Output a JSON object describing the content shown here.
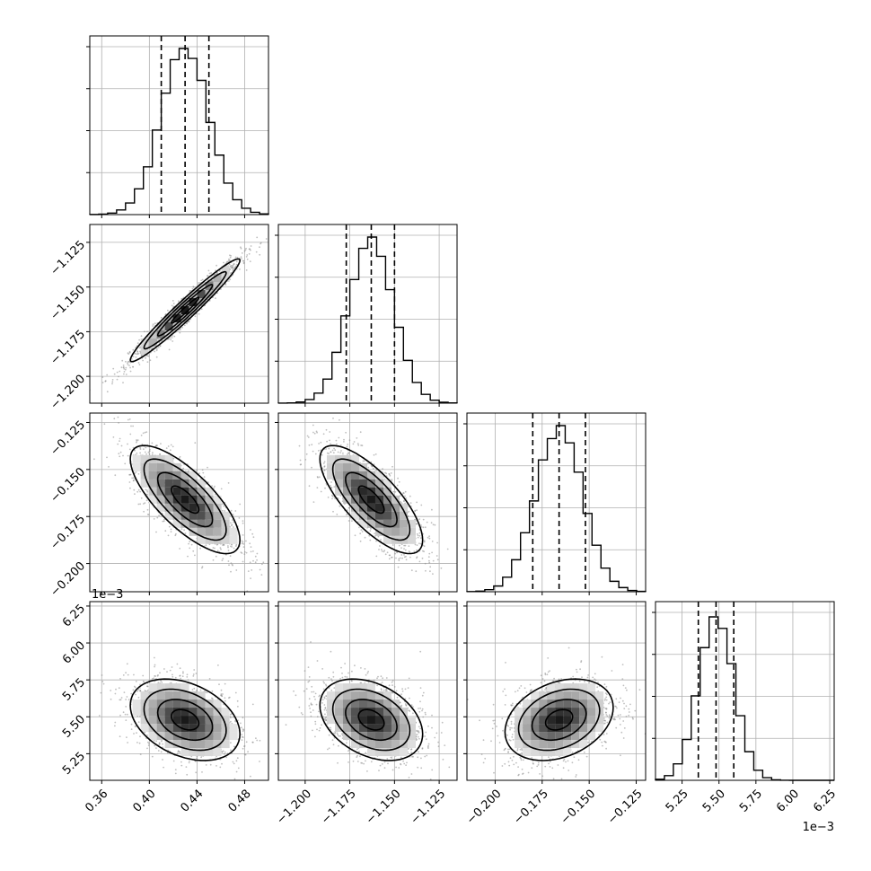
{
  "chart_data": {
    "type": "corner",
    "title": "",
    "parameters": [
      {
        "index": 0,
        "mean": 0.43,
        "sd": 0.02,
        "range": [
          0.35,
          0.5
        ],
        "ticks": [
          0.36,
          0.4,
          0.44,
          0.48
        ],
        "tick_labels": [
          "0.36",
          "0.40",
          "0.44",
          "0.48"
        ],
        "quantiles": [
          0.41,
          0.43,
          0.45
        ],
        "offset_label": ""
      },
      {
        "index": 1,
        "mean": -1.163,
        "sd": 0.0125,
        "range": [
          -1.215,
          -1.115
        ],
        "ticks": [
          -1.2,
          -1.175,
          -1.15,
          -1.125
        ],
        "tick_labels": [
          "−1.200",
          "−1.175",
          "−1.150",
          "−1.125"
        ],
        "quantiles": [
          -1.177,
          -1.163,
          -1.15
        ],
        "offset_label": ""
      },
      {
        "index": 2,
        "mean": -0.166,
        "sd": 0.0125,
        "range": [
          -0.215,
          -0.12
        ],
        "ticks": [
          -0.2,
          -0.175,
          -0.15,
          -0.125
        ],
        "tick_labels": [
          "−0.200",
          "−0.175",
          "−0.150",
          "−0.125"
        ],
        "quantiles": [
          -0.18,
          -0.166,
          -0.152
        ],
        "offset_label": ""
      },
      {
        "index": 3,
        "mean": 5.48,
        "sd": 0.12,
        "range": [
          5.07,
          6.28
        ],
        "ticks": [
          5.25,
          5.5,
          5.75,
          6.0,
          6.25
        ],
        "tick_labels": [
          "5.25",
          "5.50",
          "5.75",
          "6.00",
          "6.25"
        ],
        "quantiles": [
          5.36,
          5.48,
          5.6
        ],
        "offset_label": "1e−3"
      }
    ],
    "correlations": {
      "0-1": 0.97,
      "0-2": -0.75,
      "1-2": -0.75,
      "0-3": -0.35,
      "1-3": -0.35,
      "2-3": 0.3
    },
    "histogram": {
      "bins": 20,
      "style": "step"
    },
    "contour_levels": 4,
    "grid": true
  }
}
